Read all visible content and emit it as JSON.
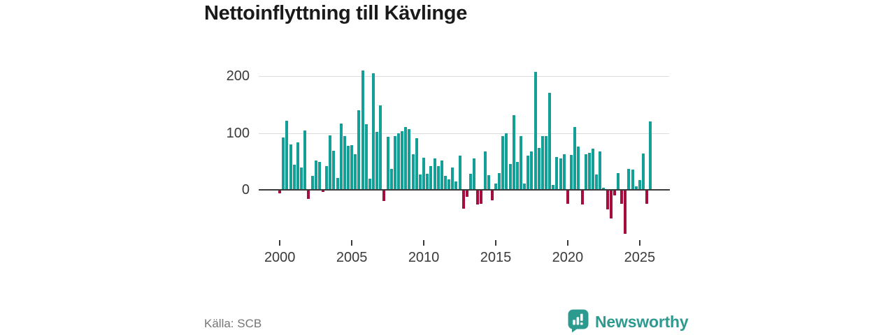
{
  "header": {
    "title": "Nettoinflyttning till Kävlinge"
  },
  "footer": {
    "source": "Källa: SCB",
    "brand": "Newsworthy",
    "logo_icon": "speech-bubble-bar-chart"
  },
  "colors": {
    "positive_bar": "#14A096",
    "negative_bar": "#A50D3D",
    "axis_line": "#3b3b3b",
    "gridline": "#dcdcdc",
    "axis_text": "#3a3a3a",
    "title_text": "#1a1a1a",
    "source_text": "#757575",
    "brand_teal": "#2d9a90"
  },
  "chart_data": {
    "type": "bar",
    "title": "Nettoinflyttning till Kävlinge",
    "period": "quarterly",
    "x_start": "2000 Q1",
    "x_end": "2025 Q4",
    "x_tick_labels": [
      "2000",
      "2005",
      "2010",
      "2015",
      "2020",
      "2025"
    ],
    "y_tick_labels": [
      "200",
      "100",
      "0"
    ],
    "y_gridline_values": [
      200,
      100
    ],
    "ylim": [
      -90,
      220
    ],
    "grid": true,
    "legend": false,
    "values": [
      -6,
      92,
      121,
      80,
      44,
      83,
      39,
      104,
      -16,
      25,
      51,
      49,
      -4,
      42,
      96,
      69,
      21,
      117,
      95,
      77,
      79,
      63,
      140,
      210,
      115,
      20,
      205,
      102,
      148,
      -20,
      93,
      37,
      95,
      100,
      103,
      110,
      107,
      62,
      91,
      27,
      56,
      28,
      42,
      55,
      42,
      52,
      24,
      18,
      39,
      15,
      60,
      -33,
      -12,
      28,
      55,
      -26,
      -24,
      68,
      26,
      -18,
      11,
      29,
      95,
      100,
      45,
      131,
      49,
      95,
      11,
      60,
      67,
      207,
      74,
      94,
      95,
      171,
      9,
      58,
      55,
      62,
      -24,
      61,
      110,
      76,
      -26,
      63,
      65,
      72,
      27,
      67,
      4,
      -34,
      -50,
      -10,
      29,
      -24,
      -77,
      37,
      36,
      6,
      17,
      64,
      -24,
      120
    ],
    "source": "SCB"
  }
}
